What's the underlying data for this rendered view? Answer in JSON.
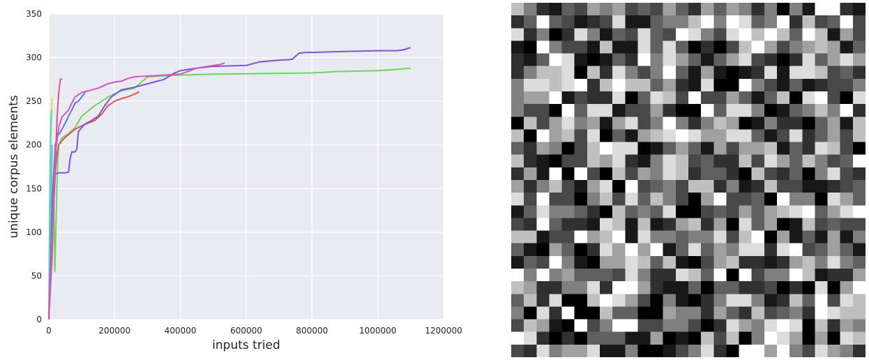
{
  "chart_data": {
    "type": "line",
    "title": "",
    "xlabel": "inputs tried",
    "ylabel": "unique corpus elements",
    "xlim": [
      0,
      1200000
    ],
    "ylim": [
      0,
      350
    ],
    "grid": true,
    "background": "#eaeaf2",
    "x_ticks": [
      0,
      200000,
      400000,
      600000,
      800000,
      1000000,
      1200000
    ],
    "x_tick_labels": [
      "0",
      "200000",
      "400000",
      "600000",
      "800000",
      "1000000",
      "1200000"
    ],
    "y_ticks": [
      0,
      50,
      100,
      150,
      200,
      250,
      300,
      350
    ],
    "y_tick_labels": [
      "0",
      "50",
      "100",
      "150",
      "200",
      "250",
      "300",
      "350"
    ],
    "series": [
      {
        "color": "#e0dc4e",
        "x": [
          0,
          1000,
          2500,
          4000,
          6000,
          8000,
          10000,
          11000,
          12000
        ],
        "y": [
          0,
          40,
          90,
          150,
          200,
          235,
          252,
          253,
          253
        ]
      },
      {
        "color": "#4ed8a4",
        "x": [
          0,
          1000,
          3000,
          5000,
          7000,
          9000
        ],
        "y": [
          0,
          60,
          140,
          200,
          235,
          240
        ]
      },
      {
        "color": "#58c0e8",
        "x": [
          0,
          2000,
          4000,
          6000,
          8000,
          10000
        ],
        "y": [
          0,
          40,
          70,
          100,
          150,
          200
        ]
      },
      {
        "color": "#6ad65a",
        "x": [
          0,
          2000,
          5000,
          10000,
          15000,
          18000,
          20000,
          25000,
          30000,
          40000,
          60000,
          80000,
          100000,
          140000,
          180000,
          220000,
          260000,
          300000,
          400000,
          500000,
          600000,
          700000,
          800000,
          830000,
          870000,
          1000000,
          1040000,
          1100000
        ],
        "y": [
          0,
          30,
          50,
          100,
          150,
          55,
          80,
          160,
          200,
          208,
          213,
          220,
          233,
          245,
          255,
          262,
          265,
          278,
          280,
          281,
          281.5,
          282,
          282.5,
          283,
          284,
          285,
          286,
          288
        ]
      },
      {
        "color": "#5a79d8",
        "x": [
          0,
          5000,
          10000,
          15000,
          20000,
          25000,
          30000,
          40000,
          50000,
          60000,
          70000,
          80000,
          90000,
          100000,
          110000
        ],
        "y": [
          0,
          60,
          130,
          170,
          200,
          210,
          212,
          218,
          225,
          233,
          240,
          248,
          250,
          255,
          260
        ]
      },
      {
        "color": "#e05454",
        "x": [
          0,
          5000,
          10000,
          15000,
          20000,
          25000,
          30000,
          40000,
          60000,
          80000,
          100000,
          120000,
          140000,
          160000,
          180000,
          200000,
          220000,
          240000,
          260000,
          270000,
          275000
        ],
        "y": [
          0,
          50,
          100,
          130,
          170,
          190,
          200,
          205,
          212,
          218,
          222,
          225,
          228,
          235,
          245,
          250,
          253,
          255,
          258,
          260,
          261
        ]
      },
      {
        "color": "#7c54d8",
        "x": [
          0,
          8000,
          12000,
          14000,
          16000,
          20000,
          30000,
          50000,
          60000,
          65000,
          70000,
          80000,
          85000,
          90000,
          100000,
          110000,
          130000,
          150000,
          170000,
          190000,
          220000,
          260000,
          300000,
          350000,
          380000,
          400000,
          450000,
          500000,
          600000,
          620000,
          640000,
          700000,
          740000,
          760000,
          780000,
          800000,
          900000,
          1000000,
          1060000,
          1080000,
          1095000,
          1100000
        ],
        "y": [
          0,
          60,
          120,
          150,
          166,
          167,
          168,
          168,
          169,
          185,
          192,
          192,
          195,
          215,
          220,
          224,
          228,
          233,
          245,
          255,
          263,
          266,
          270,
          275,
          282,
          285,
          288,
          290,
          291,
          293,
          295,
          297,
          298,
          305,
          306,
          306,
          307,
          308,
          308,
          309,
          311,
          311
        ]
      },
      {
        "color": "#d8548f",
        "x": [
          0,
          5000,
          10000,
          15000,
          18000,
          20000,
          25000,
          30000,
          35000,
          40000
        ],
        "y": [
          0,
          40,
          70,
          140,
          160,
          180,
          230,
          260,
          275,
          276
        ]
      },
      {
        "color": "#d854c4",
        "x": [
          0,
          10000,
          20000,
          30000,
          40000,
          50000,
          60000,
          70000,
          80000,
          100000,
          120000,
          150000,
          180000,
          200000,
          220000,
          240000,
          260000,
          300000,
          350000,
          400000,
          450000,
          500000,
          520000,
          535000
        ],
        "y": [
          0,
          100,
          190,
          220,
          232,
          236,
          240,
          248,
          255,
          260,
          262,
          265,
          270,
          272,
          273,
          276,
          278,
          279,
          280,
          281,
          288,
          291,
          292,
          294
        ]
      }
    ]
  },
  "grayscale_grid": {
    "cols": 28,
    "rows": 28,
    "seed": 1337
  }
}
